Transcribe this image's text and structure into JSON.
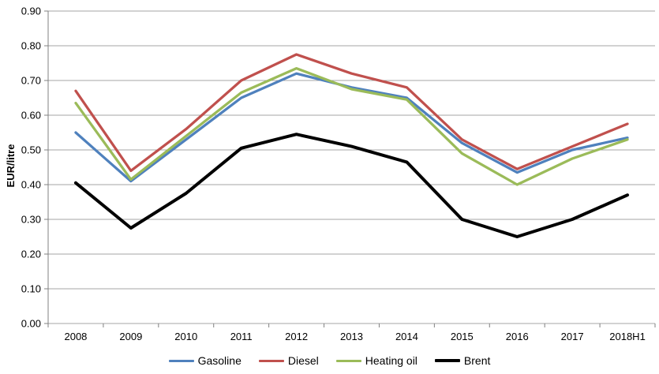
{
  "chart_data": {
    "type": "line",
    "title": "",
    "xlabel": "",
    "ylabel": "EUR/litre",
    "ylim": [
      0.0,
      0.9
    ],
    "grid": true,
    "legend_position": "bottom",
    "ytick_values": [
      0.0,
      0.1,
      0.2,
      0.3,
      0.4,
      0.5,
      0.6,
      0.7,
      0.8,
      0.9
    ],
    "ytick_labels": [
      "0.00",
      "0.10",
      "0.20",
      "0.30",
      "0.40",
      "0.50",
      "0.60",
      "0.70",
      "0.80",
      "0.90"
    ],
    "categories": [
      "2008",
      "2009",
      "2010",
      "2011",
      "2012",
      "2013",
      "2014",
      "2015",
      "2016",
      "2017",
      "2018H1"
    ],
    "series": [
      {
        "name": "Gasoline",
        "color": "#4F81BD",
        "line_width": 3.25,
        "values": [
          0.55,
          0.41,
          0.53,
          0.65,
          0.72,
          0.68,
          0.65,
          0.52,
          0.435,
          0.5,
          0.535
        ]
      },
      {
        "name": "Diesel",
        "color": "#C0504D",
        "line_width": 3.25,
        "values": [
          0.67,
          0.44,
          0.56,
          0.7,
          0.775,
          0.72,
          0.68,
          0.53,
          0.445,
          0.51,
          0.575
        ]
      },
      {
        "name": "Heating oil",
        "color": "#9BBB59",
        "line_width": 3.25,
        "values": [
          0.635,
          0.415,
          0.54,
          0.665,
          0.735,
          0.675,
          0.645,
          0.49,
          0.4,
          0.475,
          0.53
        ]
      },
      {
        "name": "Brent",
        "color": "#000000",
        "line_width": 4,
        "values": [
          0.405,
          0.275,
          0.375,
          0.505,
          0.545,
          0.51,
          0.465,
          0.3,
          0.25,
          0.3,
          0.37
        ]
      }
    ]
  },
  "colors": {
    "background": "#FFFFFF",
    "gridline": "#A6A6A6",
    "axis": "#808080",
    "text": "#000000"
  }
}
